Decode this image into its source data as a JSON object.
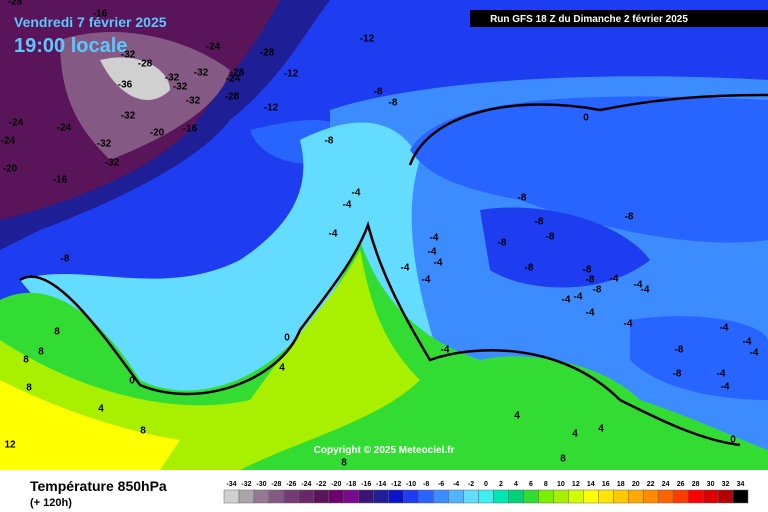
{
  "header": {
    "date": "Vendredi 7 février 2025",
    "time": "19:00 locale",
    "run": "Run GFS 18 Z du Dimanche 2 février 2025"
  },
  "copyright": "Copyright © 2025 Meteociel.fr",
  "footer": {
    "title": "Température 850hPa",
    "lead": "(+ 120h)"
  },
  "legend": {
    "values": [
      -34,
      -32,
      -30,
      -28,
      -26,
      -24,
      -22,
      -20,
      -18,
      -16,
      -14,
      -12,
      -10,
      -8,
      -6,
      -4,
      -2,
      0,
      2,
      4,
      6,
      8,
      10,
      12,
      14,
      16,
      18,
      20,
      22,
      24,
      26,
      28,
      30,
      32,
      34
    ],
    "colors": [
      "#d0d0d0",
      "#a8a8a8",
      "#947894",
      "#845a84",
      "#743c74",
      "#682868",
      "#5a145a",
      "#6e0070",
      "#7a0a8c",
      "#3c1478",
      "#1e1e96",
      "#0a14c8",
      "#1e3cf0",
      "#2864ff",
      "#3c8cff",
      "#50b4ff",
      "#64dcff",
      "#3cf0f0",
      "#00e6b4",
      "#00d278",
      "#32dc32",
      "#78f000",
      "#a8f000",
      "#d2ff00",
      "#ffff00",
      "#ffe600",
      "#ffc800",
      "#ffaa00",
      "#ff8c00",
      "#ff6400",
      "#ff3c00",
      "#ff0000",
      "#dc0000",
      "#b40000",
      "#000000"
    ]
  },
  "map_labels": [
    "-28",
    "-16",
    "-24",
    "-32",
    "-28",
    "-36",
    "-32",
    "-32",
    "-28",
    "-24",
    "-32",
    "-32",
    "-28",
    "-12",
    "-12",
    "-12",
    "-28",
    "-8",
    "-8",
    "-32",
    "-24",
    "-24",
    "-24",
    "-20",
    "-16",
    "-32",
    "-32",
    "-20",
    "-16",
    "-8",
    "0",
    "-8",
    "-8",
    "-8",
    "-8",
    "-8",
    "-4",
    "-4",
    "-4",
    "-8",
    "-4",
    "-4",
    "-4",
    "-4",
    "-4",
    "-8",
    "-8",
    "-8",
    "-8",
    "-4",
    "-4",
    "-4",
    "-4",
    "-4",
    "-4",
    "-4",
    "-4",
    "-4",
    "-4",
    "-8",
    "-8",
    "-4",
    "-4",
    "8",
    "8",
    "8",
    "8",
    "0",
    "0",
    "4",
    "-4",
    "4",
    "8",
    "12",
    "4",
    "4",
    "4",
    "0",
    "8",
    "8"
  ]
}
